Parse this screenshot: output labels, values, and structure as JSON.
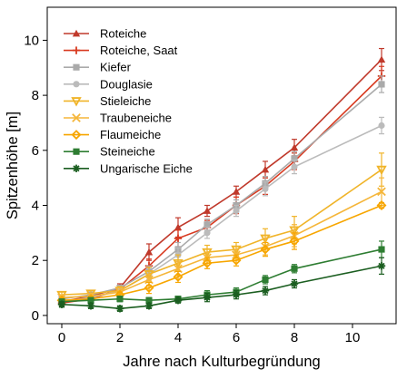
{
  "chart_data": {
    "type": "line",
    "xlabel": "Jahre nach Kulturbegründung",
    "ylabel": "Spitzenhöhe [m]",
    "xlim": [
      -0.5,
      11.5
    ],
    "ylim": [
      -0.3,
      11.2
    ],
    "xticks": [
      0,
      2,
      4,
      6,
      8,
      10
    ],
    "yticks": [
      0,
      2,
      4,
      6,
      8,
      10
    ],
    "grid": false,
    "legend_position": "top-left",
    "series": [
      {
        "name": "Roteiche",
        "color": "#c0392b",
        "marker": "triangle",
        "x": [
          0,
          1,
          2,
          3,
          4,
          5,
          6,
          7,
          8,
          11
        ],
        "y": [
          0.5,
          0.7,
          1.0,
          2.3,
          3.2,
          3.8,
          4.5,
          5.3,
          6.1,
          9.3
        ],
        "err": [
          0.1,
          0.1,
          0.15,
          0.3,
          0.35,
          0.2,
          0.2,
          0.3,
          0.3,
          0.4
        ]
      },
      {
        "name": "Roteiche, Saat",
        "color": "#d83a20",
        "marker": "plus",
        "x": [
          0,
          1,
          2,
          3,
          4,
          5,
          6,
          7,
          8,
          11
        ],
        "y": [
          0.45,
          0.6,
          0.95,
          1.8,
          2.8,
          3.2,
          4.0,
          4.7,
          5.6,
          8.7
        ],
        "err": [
          0.1,
          0.1,
          0.15,
          0.25,
          0.3,
          0.25,
          0.3,
          0.3,
          0.3,
          0.35
        ]
      },
      {
        "name": "Kiefer",
        "color": "#aaaaaa",
        "marker": "square",
        "x": [
          0,
          1,
          2,
          3,
          4,
          5,
          6,
          7,
          8,
          11
        ],
        "y": [
          0.6,
          0.75,
          1.0,
          1.6,
          2.4,
          3.3,
          4.0,
          4.8,
          5.7,
          8.4
        ],
        "err": [
          0.1,
          0.1,
          0.1,
          0.2,
          0.25,
          0.2,
          0.2,
          0.25,
          0.25,
          0.3
        ]
      },
      {
        "name": "Douglasie",
        "color": "#bbbbbb",
        "marker": "circle",
        "x": [
          0,
          1,
          2,
          3,
          4,
          5,
          6,
          7,
          8,
          11
        ],
        "y": [
          0.5,
          0.65,
          0.9,
          1.5,
          2.2,
          3.0,
          3.8,
          4.6,
          5.4,
          6.9
        ],
        "err": [
          0.1,
          0.1,
          0.1,
          0.2,
          0.25,
          0.2,
          0.2,
          0.25,
          0.25,
          0.3
        ]
      },
      {
        "name": "Stieleiche",
        "color": "#f0b429",
        "marker": "triangle-down",
        "x": [
          0,
          1,
          2,
          3,
          4,
          5,
          6,
          7,
          8,
          11
        ],
        "y": [
          0.75,
          0.8,
          0.9,
          1.5,
          1.9,
          2.3,
          2.4,
          2.8,
          3.1,
          5.3
        ],
        "err": [
          0.1,
          0.1,
          0.15,
          0.25,
          0.3,
          0.25,
          0.25,
          0.35,
          0.5,
          0.6
        ]
      },
      {
        "name": "Traubeneiche",
        "color": "#f5b63a",
        "marker": "x",
        "x": [
          0,
          1,
          2,
          3,
          4,
          5,
          6,
          7,
          8,
          11
        ],
        "y": [
          0.65,
          0.7,
          0.85,
          1.3,
          1.7,
          2.1,
          2.2,
          2.5,
          2.9,
          4.5
        ],
        "err": [
          0.1,
          0.1,
          0.15,
          0.2,
          0.25,
          0.2,
          0.2,
          0.3,
          0.4,
          0.5
        ]
      },
      {
        "name": "Flaumeiche",
        "color": "#f7a600",
        "marker": "diamond",
        "x": [
          0,
          1,
          2,
          3,
          4,
          5,
          6,
          7,
          8,
          11
        ],
        "y": [
          0.55,
          0.6,
          0.75,
          1.0,
          1.4,
          1.9,
          2.0,
          2.4,
          2.7,
          4.0
        ],
        "err": [
          0.1,
          0.1,
          0.1,
          0.2,
          0.2,
          0.2,
          0.2,
          0.25,
          0.3,
          0.1
        ]
      },
      {
        "name": "Steineiche",
        "color": "#2e7d32",
        "marker": "square",
        "x": [
          0,
          1,
          2,
          3,
          4,
          5,
          6,
          7,
          8,
          11
        ],
        "y": [
          0.5,
          0.55,
          0.6,
          0.55,
          0.6,
          0.75,
          0.85,
          1.3,
          1.7,
          2.4
        ],
        "err": [
          0.1,
          0.1,
          0.1,
          0.1,
          0.1,
          0.15,
          0.15,
          0.15,
          0.15,
          0.3
        ]
      },
      {
        "name": "Ungarische Eiche",
        "color": "#1b5e20",
        "marker": "asterisk",
        "x": [
          0,
          1,
          2,
          3,
          4,
          5,
          6,
          7,
          8,
          11
        ],
        "y": [
          0.4,
          0.35,
          0.25,
          0.35,
          0.55,
          0.65,
          0.75,
          0.9,
          1.15,
          1.8
        ],
        "err": [
          0.1,
          0.1,
          0.1,
          0.1,
          0.1,
          0.15,
          0.15,
          0.15,
          0.15,
          0.3
        ]
      }
    ]
  }
}
